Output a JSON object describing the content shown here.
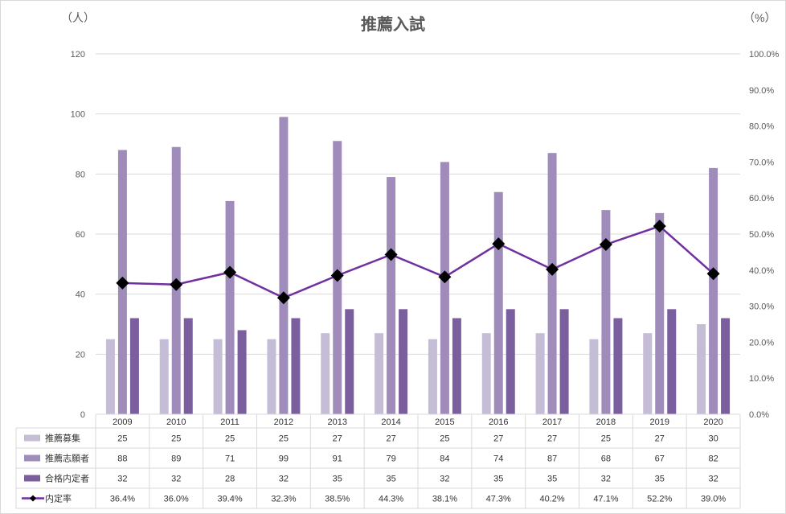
{
  "chart_data": {
    "type": "bar",
    "title": "推薦入試",
    "y_unit_left": "（人）",
    "y_unit_right": "（%）",
    "categories": [
      "2009",
      "2010",
      "2011",
      "2012",
      "2013",
      "2014",
      "2015",
      "2016",
      "2017",
      "2018",
      "2019",
      "2020"
    ],
    "ylim_left": [
      0,
      120
    ],
    "yticks_left": [
      "0",
      "20",
      "40",
      "60",
      "80",
      "100",
      "120"
    ],
    "ylim_right": [
      0,
      100
    ],
    "yticks_right": [
      "0.0%",
      "10.0%",
      "20.0%",
      "30.0%",
      "40.0%",
      "50.0%",
      "60.0%",
      "70.0%",
      "80.0%",
      "90.0%",
      "100.0%"
    ],
    "grid": true,
    "legend": "data-table",
    "series": [
      {
        "name": "推薦募集",
        "axis": "left",
        "kind": "bar",
        "color": "#c5bdd6",
        "values": [
          25,
          25,
          25,
          25,
          27,
          27,
          25,
          27,
          27,
          25,
          27,
          30
        ]
      },
      {
        "name": "推薦志願者",
        "axis": "left",
        "kind": "bar",
        "color": "#a08cba",
        "values": [
          88,
          89,
          71,
          99,
          91,
          79,
          84,
          74,
          87,
          68,
          67,
          82
        ]
      },
      {
        "name": "合格内定者",
        "axis": "left",
        "kind": "bar",
        "color": "#7b5e9e",
        "values": [
          32,
          32,
          28,
          32,
          35,
          35,
          32,
          35,
          35,
          32,
          35,
          32
        ]
      },
      {
        "name": "内定率",
        "axis": "right",
        "kind": "line",
        "color": "#7030a0",
        "marker": "diamond",
        "values": [
          36.4,
          36.0,
          39.4,
          32.3,
          38.5,
          44.3,
          38.1,
          47.3,
          40.2,
          47.1,
          52.2,
          39.0
        ],
        "labels": [
          "36.4%",
          "36.0%",
          "39.4%",
          "32.3%",
          "38.5%",
          "44.3%",
          "38.1%",
          "47.3%",
          "40.2%",
          "47.1%",
          "52.2%",
          "39.0%"
        ]
      }
    ]
  }
}
